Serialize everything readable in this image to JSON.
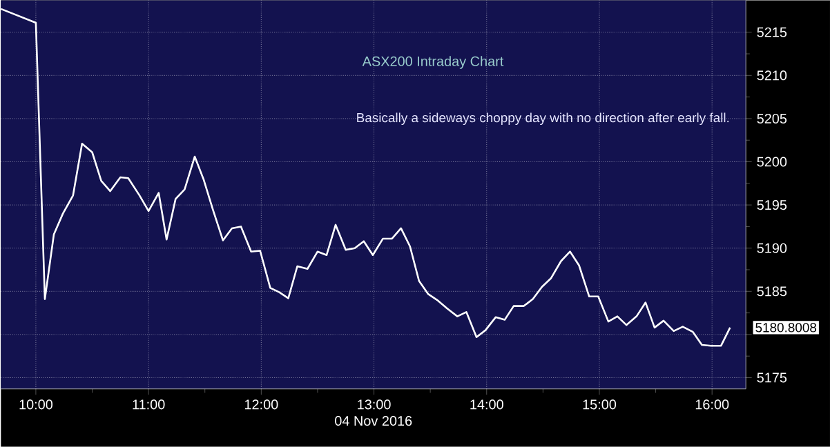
{
  "chart_data": {
    "type": "line",
    "title": "ASX200 Intraday Chart",
    "xlabel": "04 Nov 2016",
    "annotations": [
      "Basically a sideways choppy day with no direction after early fall.",
      "5180.8008"
    ],
    "x": [
      9.69,
      10.0,
      10.08,
      10.16,
      10.24,
      10.33,
      10.41,
      10.5,
      10.58,
      10.66,
      10.75,
      10.82,
      10.92,
      11.0,
      11.09,
      11.16,
      11.24,
      11.32,
      11.41,
      11.49,
      11.57,
      11.66,
      11.74,
      11.82,
      11.91,
      11.99,
      12.08,
      12.16,
      12.24,
      12.32,
      12.41,
      12.5,
      12.58,
      12.66,
      12.75,
      12.83,
      12.91,
      12.99,
      13.08,
      13.16,
      13.24,
      13.32,
      13.4,
      13.48,
      13.56,
      13.65,
      13.74,
      13.82,
      13.91,
      13.99,
      14.08,
      14.16,
      14.24,
      14.33,
      14.41,
      14.49,
      14.57,
      14.66,
      14.74,
      14.82,
      14.91,
      14.99,
      15.08,
      15.16,
      15.24,
      15.33,
      15.41,
      15.49,
      15.57,
      15.66,
      15.74,
      15.83,
      15.91,
      15.99,
      16.08,
      16.16
    ],
    "series": [
      {
        "color": "#ffffff",
        "values": [
          5217.7,
          5216.1,
          5184.1,
          5191.6,
          5194.0,
          5196.1,
          5202.1,
          5201.1,
          5197.8,
          5196.6,
          5198.2,
          5198.1,
          5196.1,
          5194.3,
          5196.4,
          5191.0,
          5195.7,
          5196.8,
          5200.6,
          5197.9,
          5194.5,
          5190.9,
          5192.3,
          5192.5,
          5189.6,
          5189.7,
          5185.4,
          5184.9,
          5184.2,
          5187.9,
          5187.6,
          5189.6,
          5189.2,
          5192.7,
          5189.8,
          5190.0,
          5190.8,
          5189.2,
          5191.1,
          5191.1,
          5192.3,
          5190.2,
          5186.2,
          5184.7,
          5184.0,
          5183.0,
          5182.1,
          5182.6,
          5179.7,
          5180.5,
          5182.0,
          5181.7,
          5183.3,
          5183.3,
          5184.1,
          5185.5,
          5186.5,
          5188.5,
          5189.6,
          5188.0,
          5184.4,
          5184.4,
          5181.5,
          5182.1,
          5181.1,
          5182.1,
          5183.7,
          5180.8,
          5181.6,
          5180.4,
          5180.9,
          5180.3,
          5178.8,
          5178.7,
          5178.7,
          5180.8008
        ]
      }
    ],
    "xlim": [
      9.69,
      16.3
    ],
    "ylim": [
      5173.7,
      5218.7
    ],
    "xticks": [
      {
        "value": 10,
        "label": "10:00"
      },
      {
        "value": 11,
        "label": "11:00"
      },
      {
        "value": 12,
        "label": "12:00"
      },
      {
        "value": 13,
        "label": "13:00"
      },
      {
        "value": 14,
        "label": "14:00"
      },
      {
        "value": 15,
        "label": "15:00"
      },
      {
        "value": 16,
        "label": "16:00"
      }
    ],
    "yticks": [
      5175,
      {
        "value": 5180,
        "label": null
      },
      5185,
      5190,
      5195,
      5200,
      5205,
      5210,
      5215
    ],
    "grid": true
  }
}
